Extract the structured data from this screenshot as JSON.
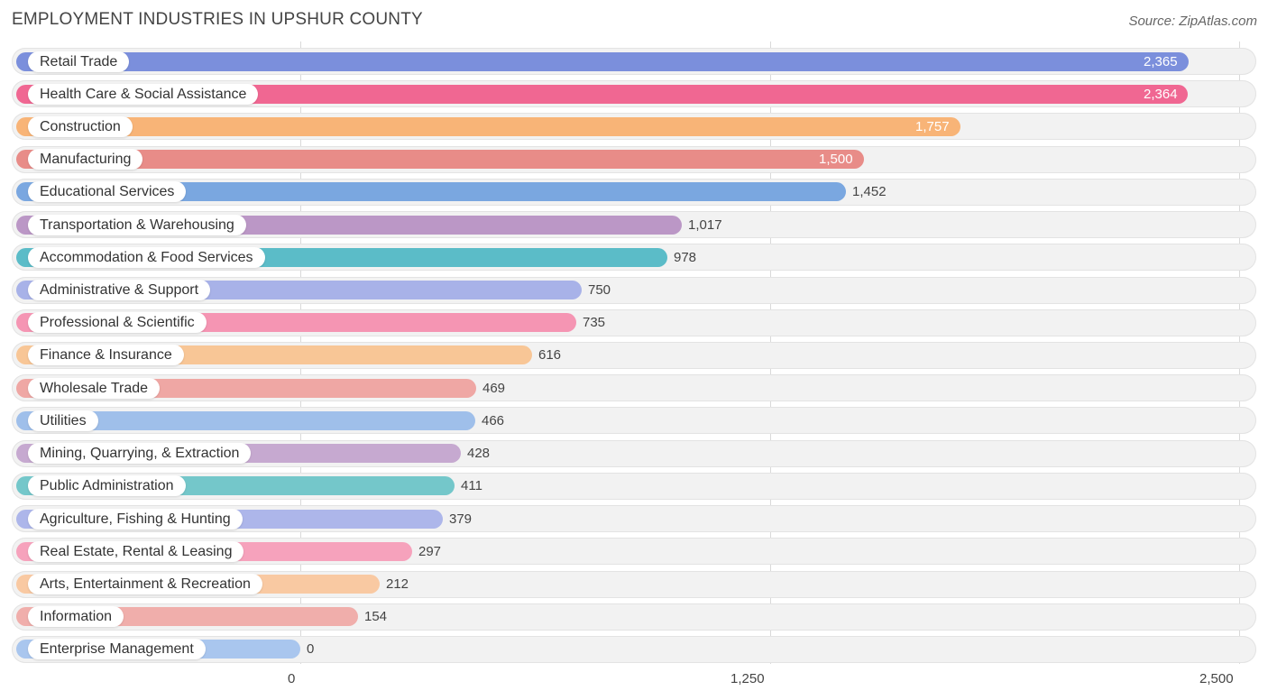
{
  "chart_data": {
    "type": "bar",
    "orientation": "horizontal",
    "title": "EMPLOYMENT INDUSTRIES IN UPSHUR COUNTY",
    "source": "Source: ZipAtlas.com",
    "xlim": [
      0,
      2500
    ],
    "ticks": [
      {
        "value": 0,
        "label": "0"
      },
      {
        "value": 1250,
        "label": "1,250"
      },
      {
        "value": 2500,
        "label": "2,500"
      }
    ],
    "categories": [
      {
        "label": "Retail Trade",
        "value": 2365,
        "display": "2,365",
        "color": "#7b8fdc"
      },
      {
        "label": "Health Care & Social Assistance",
        "value": 2364,
        "display": "2,364",
        "color": "#f06792"
      },
      {
        "label": "Construction",
        "value": 1757,
        "display": "1,757",
        "color": "#f8b477"
      },
      {
        "label": "Manufacturing",
        "value": 1500,
        "display": "1,500",
        "color": "#e88c88"
      },
      {
        "label": "Educational Services",
        "value": 1452,
        "display": "1,452",
        "color": "#7aa7e0"
      },
      {
        "label": "Transportation & Warehousing",
        "value": 1017,
        "display": "1,017",
        "color": "#bb97c6"
      },
      {
        "label": "Accommodation & Food Services",
        "value": 978,
        "display": "978",
        "color": "#5bbcc8"
      },
      {
        "label": "Administrative & Support",
        "value": 750,
        "display": "750",
        "color": "#a8b2e8"
      },
      {
        "label": "Professional & Scientific",
        "value": 735,
        "display": "735",
        "color": "#f595b3"
      },
      {
        "label": "Finance & Insurance",
        "value": 616,
        "display": "616",
        "color": "#f8c696"
      },
      {
        "label": "Wholesale Trade",
        "value": 469,
        "display": "469",
        "color": "#efa7a4"
      },
      {
        "label": "Utilities",
        "value": 466,
        "display": "466",
        "color": "#9fbfea"
      },
      {
        "label": "Mining, Quarrying, & Extraction",
        "value": 428,
        "display": "428",
        "color": "#c6a9d0"
      },
      {
        "label": "Public Administration",
        "value": 411,
        "display": "411",
        "color": "#74c7ca"
      },
      {
        "label": "Agriculture, Fishing & Hunting",
        "value": 379,
        "display": "379",
        "color": "#adb6ea"
      },
      {
        "label": "Real Estate, Rental & Leasing",
        "value": 297,
        "display": "297",
        "color": "#f6a2bc"
      },
      {
        "label": "Arts, Entertainment & Recreation",
        "value": 212,
        "display": "212",
        "color": "#f9c9a2"
      },
      {
        "label": "Information",
        "value": 154,
        "display": "154",
        "color": "#f0aeab"
      },
      {
        "label": "Enterprise Management",
        "value": 0,
        "display": "0",
        "color": "#a9c6ee"
      }
    ]
  }
}
